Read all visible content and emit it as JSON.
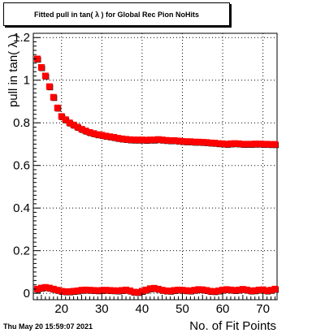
{
  "title": "Fitted pull in tan( λ ) for Global Rec Pion NoHits",
  "timestamp": "Thu May 20 15:59:07 2021",
  "chart_data": {
    "type": "scatter",
    "title": "Fitted pull in tan( λ ) for Global Rec Pion NoHits",
    "xlabel": "No. of Fit Points",
    "ylabel": "pull in tan( λ )",
    "xlim": [
      13,
      73.5
    ],
    "ylim": [
      -0.03,
      1.22
    ],
    "xticks": [
      20,
      30,
      40,
      50,
      60,
      70
    ],
    "yticks": [
      0,
      0.2,
      0.4,
      0.6,
      0.8,
      1,
      1.2
    ],
    "ytick_labels": [
      "0",
      "0.2",
      "0.4",
      "0.6",
      "0.8",
      "1",
      "1.2"
    ],
    "grid": true,
    "series": [
      {
        "color": "#000000",
        "marker": "square",
        "points": [
          [
            14,
            1.1
          ],
          [
            15,
            1.06
          ],
          [
            16,
            1.02
          ],
          [
            17,
            0.97
          ],
          [
            18,
            0.92
          ],
          [
            19,
            0.87
          ],
          [
            20,
            0.83
          ],
          [
            21,
            0.815
          ],
          [
            22,
            0.8
          ],
          [
            23,
            0.79
          ],
          [
            24,
            0.78
          ],
          [
            25,
            0.77
          ],
          [
            26,
            0.762
          ],
          [
            27,
            0.755
          ],
          [
            28,
            0.75
          ],
          [
            29,
            0.745
          ],
          [
            30,
            0.742
          ],
          [
            31,
            0.738
          ],
          [
            32,
            0.735
          ],
          [
            33,
            0.732
          ],
          [
            34,
            0.728
          ],
          [
            35,
            0.725
          ],
          [
            36,
            0.723
          ],
          [
            37,
            0.721
          ],
          [
            38,
            0.72
          ],
          [
            39,
            0.72
          ],
          [
            40,
            0.72
          ],
          [
            41,
            0.719
          ],
          [
            42,
            0.72
          ],
          [
            43,
            0.72
          ],
          [
            44,
            0.722
          ],
          [
            45,
            0.72
          ],
          [
            46,
            0.718
          ],
          [
            47,
            0.717
          ],
          [
            48,
            0.717
          ],
          [
            49,
            0.715
          ],
          [
            50,
            0.713
          ],
          [
            51,
            0.712
          ],
          [
            52,
            0.712
          ],
          [
            53,
            0.71
          ],
          [
            54,
            0.71
          ],
          [
            55,
            0.709
          ],
          [
            56,
            0.708
          ],
          [
            57,
            0.706
          ],
          [
            58,
            0.705
          ],
          [
            59,
            0.703
          ],
          [
            60,
            0.702
          ],
          [
            61,
            0.7
          ],
          [
            62,
            0.702
          ],
          [
            63,
            0.703
          ],
          [
            64,
            0.702
          ],
          [
            65,
            0.7
          ],
          [
            66,
            0.7
          ],
          [
            67,
            0.7
          ],
          [
            68,
            0.701
          ],
          [
            69,
            0.701
          ],
          [
            70,
            0.7
          ],
          [
            71,
            0.7
          ],
          [
            72,
            0.699
          ],
          [
            73,
            0.699
          ]
        ]
      },
      {
        "color": "#ff0000",
        "marker": "square",
        "points": [
          [
            14,
            1.1
          ],
          [
            15,
            1.06
          ],
          [
            16,
            1.02
          ],
          [
            17,
            0.97
          ],
          [
            18,
            0.92
          ],
          [
            19,
            0.87
          ],
          [
            20,
            0.83
          ],
          [
            21,
            0.815
          ],
          [
            22,
            0.8
          ],
          [
            23,
            0.79
          ],
          [
            24,
            0.78
          ],
          [
            25,
            0.77
          ],
          [
            26,
            0.762
          ],
          [
            27,
            0.755
          ],
          [
            28,
            0.75
          ],
          [
            29,
            0.745
          ],
          [
            30,
            0.742
          ],
          [
            31,
            0.738
          ],
          [
            32,
            0.735
          ],
          [
            33,
            0.732
          ],
          [
            34,
            0.728
          ],
          [
            35,
            0.725
          ],
          [
            36,
            0.723
          ],
          [
            37,
            0.721
          ],
          [
            38,
            0.72
          ],
          [
            39,
            0.72
          ],
          [
            40,
            0.72
          ],
          [
            41,
            0.719
          ],
          [
            42,
            0.72
          ],
          [
            43,
            0.72
          ],
          [
            44,
            0.722
          ],
          [
            45,
            0.72
          ],
          [
            46,
            0.718
          ],
          [
            47,
            0.717
          ],
          [
            48,
            0.717
          ],
          [
            49,
            0.715
          ],
          [
            50,
            0.713
          ],
          [
            51,
            0.712
          ],
          [
            52,
            0.712
          ],
          [
            53,
            0.71
          ],
          [
            54,
            0.71
          ],
          [
            55,
            0.709
          ],
          [
            56,
            0.708
          ],
          [
            57,
            0.706
          ],
          [
            58,
            0.705
          ],
          [
            59,
            0.703
          ],
          [
            60,
            0.702
          ],
          [
            61,
            0.7
          ],
          [
            62,
            0.702
          ],
          [
            63,
            0.703
          ],
          [
            64,
            0.702
          ],
          [
            65,
            0.7
          ],
          [
            66,
            0.7
          ],
          [
            67,
            0.7
          ],
          [
            68,
            0.701
          ],
          [
            69,
            0.701
          ],
          [
            70,
            0.7
          ],
          [
            71,
            0.7
          ],
          [
            72,
            0.699
          ],
          [
            73,
            0.699
          ]
        ]
      },
      {
        "color": "#000000",
        "marker": "square",
        "points": [
          [
            14,
            0.02
          ],
          [
            15,
            0.025
          ],
          [
            16,
            0.028
          ],
          [
            17,
            0.025
          ],
          [
            18,
            0.02
          ],
          [
            19,
            0.015
          ],
          [
            20,
            0.01
          ],
          [
            21,
            0.008
          ],
          [
            22,
            0.008
          ],
          [
            23,
            0.01
          ],
          [
            24,
            0.012
          ],
          [
            25,
            0.015
          ],
          [
            26,
            0.016
          ],
          [
            27,
            0.015
          ],
          [
            28,
            0.014
          ],
          [
            29,
            0.013
          ],
          [
            30,
            0.014
          ],
          [
            31,
            0.015
          ],
          [
            32,
            0.014
          ],
          [
            33,
            0.013
          ],
          [
            34,
            0.012
          ],
          [
            35,
            0.014
          ],
          [
            36,
            0.016
          ],
          [
            37,
            0.012
          ],
          [
            38,
            0.006
          ],
          [
            39,
            0.005
          ],
          [
            40,
            0.01
          ],
          [
            41,
            0.016
          ],
          [
            42,
            0.022
          ],
          [
            43,
            0.024
          ],
          [
            44,
            0.02
          ],
          [
            45,
            0.015
          ],
          [
            46,
            0.012
          ],
          [
            47,
            0.011
          ],
          [
            48,
            0.014
          ],
          [
            49,
            0.016
          ],
          [
            50,
            0.015
          ],
          [
            51,
            0.013
          ],
          [
            52,
            0.012
          ],
          [
            53,
            0.015
          ],
          [
            54,
            0.018
          ],
          [
            55,
            0.017
          ],
          [
            56,
            0.014
          ],
          [
            57,
            0.01
          ],
          [
            58,
            0.009
          ],
          [
            59,
            0.012
          ],
          [
            60,
            0.016
          ],
          [
            61,
            0.018
          ],
          [
            62,
            0.016
          ],
          [
            63,
            0.014
          ],
          [
            64,
            0.016
          ],
          [
            65,
            0.019
          ],
          [
            66,
            0.016
          ],
          [
            67,
            0.012
          ],
          [
            68,
            0.013
          ],
          [
            69,
            0.016
          ],
          [
            70,
            0.017
          ],
          [
            71,
            0.012
          ],
          [
            72,
            0.015
          ],
          [
            73,
            0.02
          ]
        ]
      },
      {
        "color": "#ff0000",
        "marker": "square",
        "points": [
          [
            14,
            0.02
          ],
          [
            15,
            0.025
          ],
          [
            16,
            0.028
          ],
          [
            17,
            0.025
          ],
          [
            18,
            0.02
          ],
          [
            19,
            0.015
          ],
          [
            20,
            0.01
          ],
          [
            21,
            0.008
          ],
          [
            22,
            0.008
          ],
          [
            23,
            0.01
          ],
          [
            24,
            0.012
          ],
          [
            25,
            0.015
          ],
          [
            26,
            0.016
          ],
          [
            27,
            0.015
          ],
          [
            28,
            0.014
          ],
          [
            29,
            0.013
          ],
          [
            30,
            0.014
          ],
          [
            31,
            0.015
          ],
          [
            32,
            0.014
          ],
          [
            33,
            0.013
          ],
          [
            34,
            0.012
          ],
          [
            35,
            0.014
          ],
          [
            36,
            0.016
          ],
          [
            37,
            0.012
          ],
          [
            38,
            0.006
          ],
          [
            39,
            0.005
          ],
          [
            40,
            0.01
          ],
          [
            41,
            0.016
          ],
          [
            42,
            0.022
          ],
          [
            43,
            0.024
          ],
          [
            44,
            0.02
          ],
          [
            45,
            0.015
          ],
          [
            46,
            0.012
          ],
          [
            47,
            0.011
          ],
          [
            48,
            0.014
          ],
          [
            49,
            0.016
          ],
          [
            50,
            0.015
          ],
          [
            51,
            0.013
          ],
          [
            52,
            0.012
          ],
          [
            53,
            0.015
          ],
          [
            54,
            0.018
          ],
          [
            55,
            0.017
          ],
          [
            56,
            0.014
          ],
          [
            57,
            0.01
          ],
          [
            58,
            0.009
          ],
          [
            59,
            0.012
          ],
          [
            60,
            0.016
          ],
          [
            61,
            0.018
          ],
          [
            62,
            0.016
          ],
          [
            63,
            0.014
          ],
          [
            64,
            0.016
          ],
          [
            65,
            0.019
          ],
          [
            66,
            0.016
          ],
          [
            67,
            0.012
          ],
          [
            68,
            0.013
          ],
          [
            69,
            0.016
          ],
          [
            70,
            0.017
          ],
          [
            71,
            0.012
          ],
          [
            72,
            0.015
          ],
          [
            73,
            0.02
          ]
        ]
      }
    ]
  }
}
